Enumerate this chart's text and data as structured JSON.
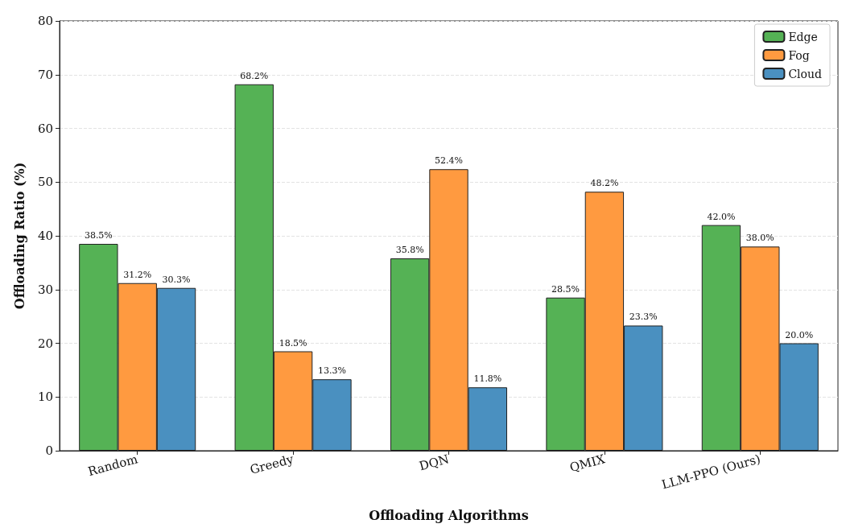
{
  "chart_data": {
    "type": "bar",
    "xlabel": "Offloading Algorithms",
    "ylabel": "Offloading Ratio (%)",
    "categories": [
      "Random",
      "Greedy",
      "DQN",
      "QMIX",
      "LLM-PPO (Ours)"
    ],
    "series": [
      {
        "name": "Edge",
        "color": "#55b255",
        "values": [
          38.5,
          68.2,
          35.8,
          28.5,
          42.0
        ],
        "value_labels": [
          "38.5%",
          "68.2%",
          "35.8%",
          "28.5%",
          "42.0%"
        ]
      },
      {
        "name": "Fog",
        "color": "#ff9a40",
        "values": [
          31.2,
          18.5,
          52.4,
          48.2,
          38.0
        ],
        "value_labels": [
          "31.2%",
          "18.5%",
          "52.4%",
          "48.2%",
          "38.0%"
        ]
      },
      {
        "name": "Cloud",
        "color": "#4a90c0",
        "values": [
          30.3,
          13.3,
          11.8,
          23.3,
          20.0
        ],
        "value_labels": [
          "30.3%",
          "13.3%",
          "11.8%",
          "23.3%",
          "20.0%"
        ]
      }
    ],
    "ylim": [
      0,
      80
    ],
    "yticks": [
      0,
      10,
      20,
      30,
      40,
      50,
      60,
      70,
      80
    ],
    "grid": "y",
    "legend": "top right"
  }
}
